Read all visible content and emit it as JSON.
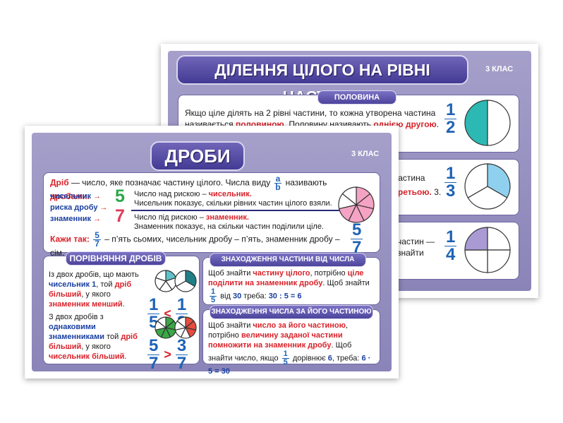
{
  "back": {
    "title": "ДІЛЕННЯ ЦІЛОГО НА РІВНІ ЧАСТИНИ",
    "grade": "3 КЛАС",
    "sections": [
      {
        "title": "ПОЛОВИНА",
        "runs": [
          "Якщо ціле ділять на 2 рівні частини, то кожна утворена частина називається ",
          {
            "text": "половиною",
            "color": "#d8232a"
          },
          ". Половину називають ",
          {
            "text": "однією другою",
            "color": "#d8232a"
          },
          ". 2."
        ],
        "fraction": {
          "num": "1",
          "den": "2"
        }
      },
      {
        "runs": [
          "частина ",
          {
            "text": "третьою.",
            "color": "#d8232a"
          },
          " 3."
        ],
        "fraction": {
          "num": "1",
          "den": "3"
        }
      },
      {
        "runs": [
          "частин — ",
          "знайти"
        ],
        "fraction": {
          "num": "1",
          "den": "4"
        }
      }
    ]
  },
  "front": {
    "title": "ДРОБИ",
    "grade": "3 КЛАС",
    "definition": [
      {
        "text": "Дріб",
        "color": "#d8232a"
      },
      " — число, яке позначає частину цілого. Числа виду ",
      {
        "num": "a",
        "den": "b"
      },
      " називають ",
      {
        "text": "дробами.",
        "color": "#d8232a"
      }
    ],
    "parts": {
      "labels": [
        "чисельник",
        "риска дробу",
        "знаменник"
      ],
      "num": "5",
      "den": "7"
    },
    "lines": [
      [
        "Число над рискою – ",
        {
          "text": "чисельник.",
          "color": "#d8232a"
        }
      ],
      [
        "Чисельник показує, скільки рівних частин цілого взяли."
      ],
      [
        "Число під рискою – ",
        {
          "text": "знаменник.",
          "color": "#d8232a"
        }
      ],
      [
        "Знаменник показує, на скільки частин поділили ціле."
      ]
    ],
    "circle_fraction": {
      "num": "5",
      "den": "7"
    },
    "say": [
      {
        "text": "Кажи так:",
        "color": "#d8232a"
      },
      " ",
      {
        "num": "5",
        "den": "7"
      },
      " – п’ять сьомих, чисельник дробу – п’ять, знаменник дробу – сім."
    ],
    "compare": {
      "title": "ПОРІВНЯННЯ ДРОБІВ",
      "rules": [
        {
          "runs": [
            "Із двох дробів, що мають ",
            {
              "text": "чисельник 1",
              "color": "#1a3fa0"
            },
            ", той ",
            {
              "text": "дріб більший",
              "color": "#d8232a"
            },
            ", у якого ",
            {
              "text": "знаменник менший",
              "color": "#d8232a"
            },
            "."
          ],
          "left": {
            "num": "1",
            "den": "5"
          },
          "sign": "<",
          "right": {
            "num": "1",
            "den": "3"
          }
        },
        {
          "runs": [
            "З двох дробів з ",
            {
              "text": "однаковими знаменниками",
              "color": "#1a3fa0"
            },
            " той ",
            {
              "text": "дріб більший",
              "color": "#d8232a"
            },
            ", у якого ",
            {
              "text": "чисельник більший",
              "color": "#d8232a"
            },
            "."
          ],
          "left": {
            "num": "5",
            "den": "7"
          },
          "sign": ">",
          "right": {
            "num": "3",
            "den": "7"
          }
        }
      ]
    },
    "part_of_number": {
      "title": "ЗНАХОДЖЕННЯ ЧАСТИНИ ВІД ЧИСЛА",
      "runs": [
        "Щоб знайти ",
        {
          "text": "частину цілого",
          "color": "#d8232a"
        },
        ", потрібно ",
        {
          "text": "ціле поділити на знаменник дробу",
          "color": "#d8232a"
        },
        ". Щоб знайти ",
        {
          "num": "1",
          "den": "5"
        },
        " від ",
        {
          "text": "30",
          "color": "#1a3fa0"
        },
        " треба: ",
        {
          "text": "30 : 5 = 6",
          "color": "#1a3fa0"
        }
      ]
    },
    "number_by_part": {
      "title": "ЗНАХОДЖЕННЯ ЧИСЛА ЗА ЙОГО ЧАСТИНОЮ",
      "runs": [
        "Щоб знайти ",
        {
          "text": "число за його частиною",
          "color": "#d8232a"
        },
        ", потрібно ",
        {
          "text": "величину заданої частини помножити на знаменник дробу",
          "color": "#d8232a"
        },
        ". Щоб знайти число, якщо ",
        {
          "num": "1",
          "den": "5"
        },
        " дорівнює ",
        {
          "text": "6",
          "color": "#1a3fa0"
        },
        ", треба: ",
        {
          "text": "6 · 5 = 30",
          "color": "#1a3fa0"
        }
      ]
    }
  }
}
